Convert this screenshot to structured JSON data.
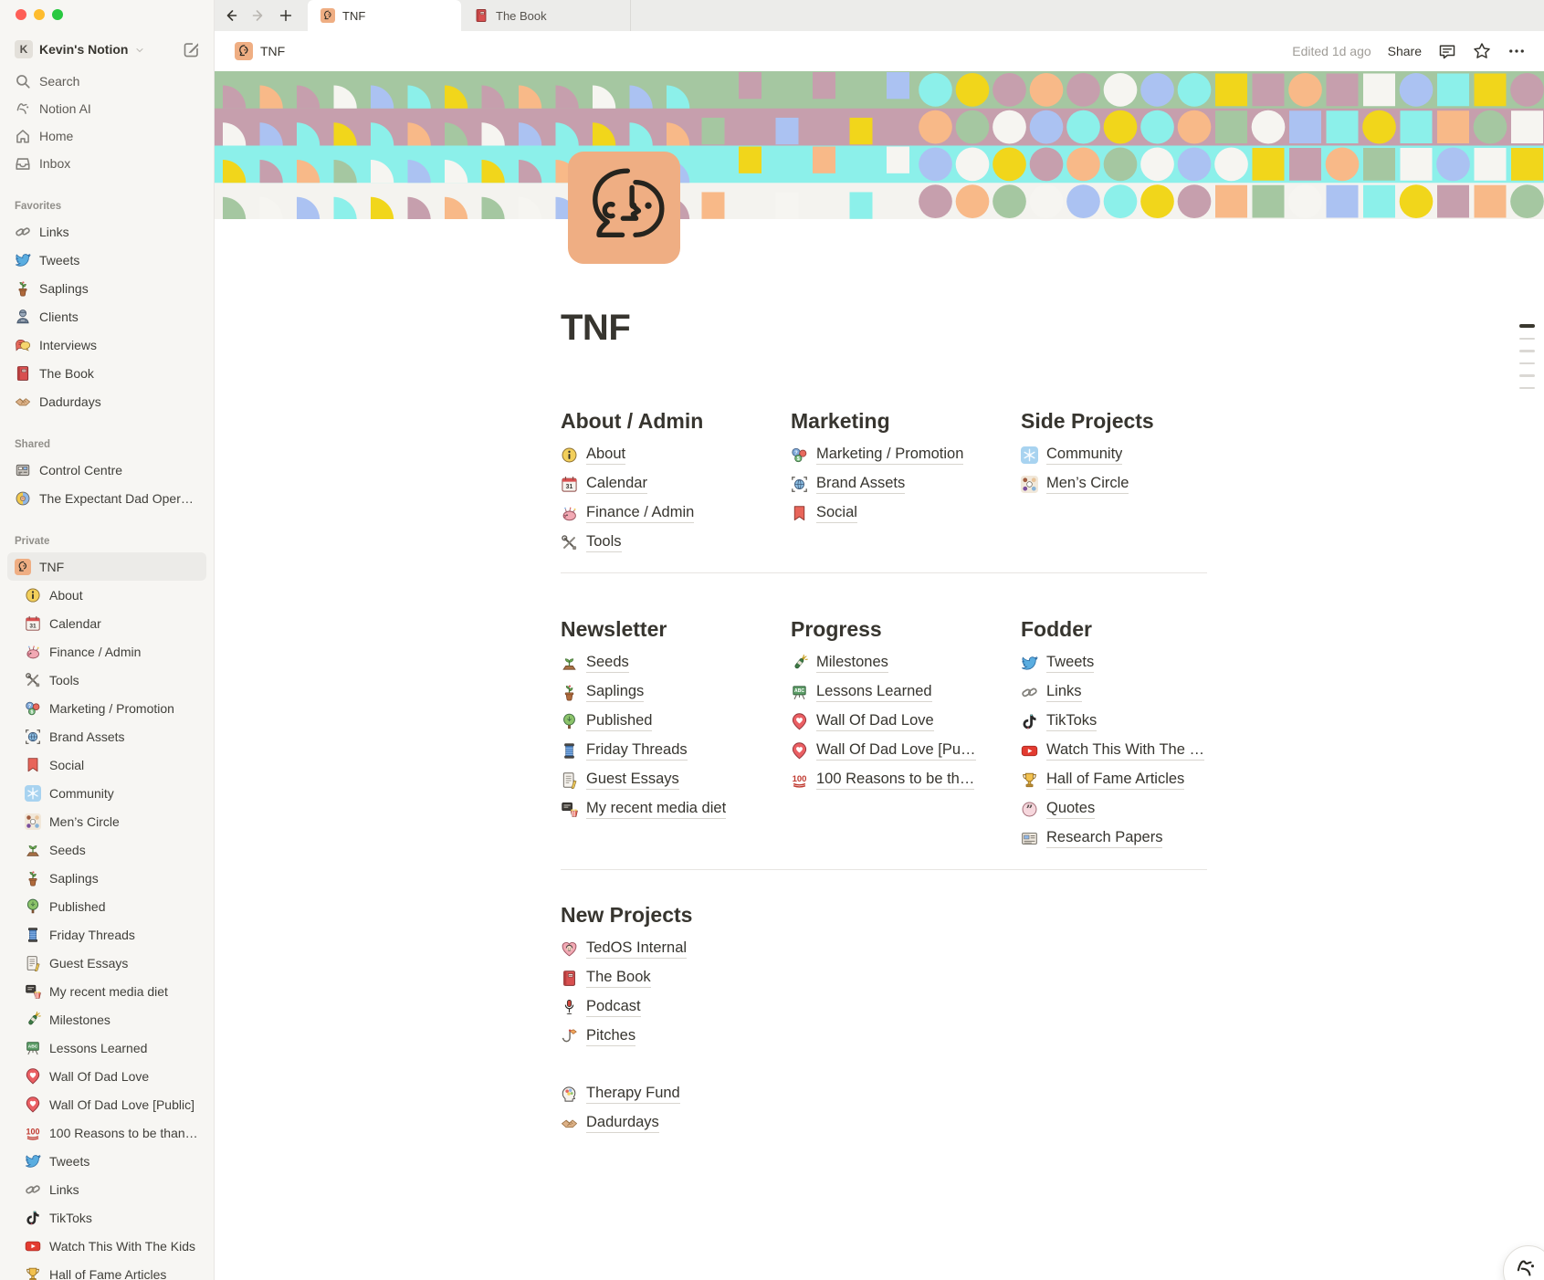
{
  "sidebar": {
    "workspace": {
      "initial": "K",
      "name": "Kevin's Notion"
    },
    "top_items": [
      {
        "icon": "search-icon",
        "label": "Search"
      },
      {
        "icon": "notion-ai-icon",
        "label": "Notion AI"
      },
      {
        "icon": "home-icon",
        "label": "Home"
      },
      {
        "icon": "inbox-icon",
        "label": "Inbox"
      }
    ],
    "sections": [
      {
        "label": "Favorites",
        "items": [
          {
            "icon": "link-icon",
            "label": "Links"
          },
          {
            "icon": "twitter-icon",
            "label": "Tweets"
          },
          {
            "icon": "potted-plant-icon",
            "label": "Saplings"
          },
          {
            "icon": "person-icon",
            "label": "Clients"
          },
          {
            "icon": "speech-bubbles-icon",
            "label": "Interviews"
          },
          {
            "icon": "book-icon",
            "label": "The Book"
          },
          {
            "icon": "handshake-icon",
            "label": "Dadurdays"
          }
        ]
      },
      {
        "label": "Shared",
        "items": [
          {
            "icon": "control-panel-icon",
            "label": "Control Centre"
          },
          {
            "icon": "expectant-dad-icon",
            "label": "The Expectant Dad Oper…"
          }
        ]
      },
      {
        "label": "Private",
        "items": [
          {
            "icon": "tnf-face-icon",
            "label": "TNF",
            "selected": true
          },
          {
            "icon": "info-icon",
            "label": "About",
            "indent": true
          },
          {
            "icon": "calendar-icon",
            "label": "Calendar",
            "indent": true
          },
          {
            "icon": "piggy-icon",
            "label": "Finance / Admin",
            "indent": true
          },
          {
            "icon": "tools-icon",
            "label": "Tools",
            "indent": true
          },
          {
            "icon": "marketing-icon",
            "label": "Marketing / Promotion",
            "indent": true
          },
          {
            "icon": "globe-frame-icon",
            "label": "Brand Assets",
            "indent": true
          },
          {
            "icon": "bookmark-icon",
            "label": "Social",
            "indent": true
          },
          {
            "icon": "snowflake-square-icon",
            "label": "Community",
            "indent": true
          },
          {
            "icon": "people-circle-icon",
            "label": "Men’s Circle",
            "indent": true
          },
          {
            "icon": "sprout-icon",
            "label": "Seeds",
            "indent": true
          },
          {
            "icon": "potted-plant-icon",
            "label": "Saplings",
            "indent": true
          },
          {
            "icon": "tree-icon",
            "label": "Published",
            "indent": true
          },
          {
            "icon": "thread-spool-icon",
            "label": "Friday Threads",
            "indent": true
          },
          {
            "icon": "scroll-pencil-icon",
            "label": "Guest Essays",
            "indent": true
          },
          {
            "icon": "media-popcorn-icon",
            "label": "My recent media diet",
            "indent": true
          },
          {
            "icon": "champagne-icon",
            "label": "Milestones",
            "indent": true
          },
          {
            "icon": "chalkboard-icon",
            "label": "Lessons Learned",
            "indent": true
          },
          {
            "icon": "heart-pin-icon",
            "label": "Wall Of Dad Love",
            "indent": true
          },
          {
            "icon": "heart-pin-icon",
            "label": "Wall Of Dad Love [Public]",
            "indent": true
          },
          {
            "icon": "hundred-icon",
            "label": "100 Reasons to be than…",
            "indent": true
          },
          {
            "icon": "twitter-icon",
            "label": "Tweets",
            "indent": true
          },
          {
            "icon": "link-icon",
            "label": "Links",
            "indent": true
          },
          {
            "icon": "tiktok-icon",
            "label": "TikToks",
            "indent": true
          },
          {
            "icon": "youtube-icon",
            "label": "Watch This With The Kids",
            "indent": true
          },
          {
            "icon": "trophy-icon",
            "label": "Hall of Fame Articles",
            "indent": true
          }
        ]
      }
    ]
  },
  "tab_bar": {
    "tabs": [
      {
        "icon": "tnf-face-icon",
        "label": "TNF",
        "active": true
      },
      {
        "icon": "book-icon",
        "label": "The Book",
        "active": false
      }
    ]
  },
  "header": {
    "breadcrumb": {
      "icon": "tnf-face-icon",
      "label": "TNF"
    },
    "edited": "Edited 1d ago",
    "share_label": "Share"
  },
  "page": {
    "title": "TNF",
    "icon": "tnf-face-icon",
    "cover": {
      "bands": [
        "#a5c7a1",
        "#c69fad",
        "#8cf0ea",
        "#f4f3ef"
      ],
      "palette": [
        "#c69fad",
        "#8cf0ea",
        "#f6f5f1",
        "#f8b988",
        "#f1d61b",
        "#abc2f2",
        "#a5c7a1"
      ]
    },
    "rows": [
      {
        "divider_after": true,
        "columns": [
          {
            "heading": "About / Admin",
            "groups": [
              [
                {
                  "icon": "info-icon",
                  "label": "About"
                },
                {
                  "icon": "calendar-icon",
                  "label": "Calendar"
                },
                {
                  "icon": "piggy-icon",
                  "label": "Finance / Admin"
                },
                {
                  "icon": "tools-icon",
                  "label": "Tools"
                }
              ]
            ]
          },
          {
            "heading": "Marketing",
            "groups": [
              [
                {
                  "icon": "marketing-icon",
                  "label": "Marketing / Promotion"
                },
                {
                  "icon": "globe-frame-icon",
                  "label": "Brand Assets"
                },
                {
                  "icon": "bookmark-icon",
                  "label": "Social"
                }
              ]
            ]
          },
          {
            "heading": "Side Projects",
            "groups": [
              [
                {
                  "icon": "snowflake-square-icon",
                  "label": "Community"
                },
                {
                  "icon": "people-circle-icon",
                  "label": "Men’s Circle"
                }
              ]
            ]
          }
        ]
      },
      {
        "divider_after": true,
        "columns": [
          {
            "heading": "Newsletter",
            "groups": [
              [
                {
                  "icon": "sprout-icon",
                  "label": "Seeds"
                },
                {
                  "icon": "potted-plant-icon",
                  "label": "Saplings"
                },
                {
                  "icon": "tree-icon",
                  "label": "Published"
                },
                {
                  "icon": "thread-spool-icon",
                  "label": "Friday Threads"
                },
                {
                  "icon": "scroll-pencil-icon",
                  "label": "Guest Essays"
                },
                {
                  "icon": "media-popcorn-icon",
                  "label": "My recent media diet"
                }
              ]
            ]
          },
          {
            "heading": "Progress",
            "groups": [
              [
                {
                  "icon": "champagne-icon",
                  "label": "Milestones"
                },
                {
                  "icon": "chalkboard-icon",
                  "label": "Lessons Learned"
                },
                {
                  "icon": "heart-pin-icon",
                  "label": "Wall Of Dad Love"
                },
                {
                  "icon": "heart-pin-icon",
                  "label": "Wall Of Dad Love [Pu…"
                },
                {
                  "icon": "hundred-icon",
                  "label": "100 Reasons to be th…"
                }
              ]
            ]
          },
          {
            "heading": "Fodder",
            "groups": [
              [
                {
                  "icon": "twitter-icon",
                  "label": "Tweets"
                },
                {
                  "icon": "link-icon",
                  "label": "Links"
                },
                {
                  "icon": "tiktok-icon",
                  "label": "TikToks"
                },
                {
                  "icon": "youtube-icon",
                  "label": "Watch This With The …"
                },
                {
                  "icon": "trophy-icon",
                  "label": "Hall of Fame Articles"
                },
                {
                  "icon": "quotes-icon",
                  "label": "Quotes"
                },
                {
                  "icon": "newspaper-icon",
                  "label": "Research Papers"
                }
              ]
            ]
          }
        ]
      },
      {
        "divider_after": false,
        "columns": [
          {
            "heading": "New Projects",
            "groups": [
              [
                {
                  "icon": "tedos-heart-icon",
                  "label": "TedOS Internal"
                },
                {
                  "icon": "book-icon",
                  "label": "The Book"
                },
                {
                  "icon": "microphone-icon",
                  "label": "Podcast"
                },
                {
                  "icon": "fishhook-icon",
                  "label": "Pitches"
                }
              ],
              [
                {
                  "icon": "head-brain-icon",
                  "label": "Therapy Fund"
                },
                {
                  "icon": "handshake-icon",
                  "label": "Dadurdays"
                }
              ]
            ]
          }
        ]
      }
    ]
  }
}
